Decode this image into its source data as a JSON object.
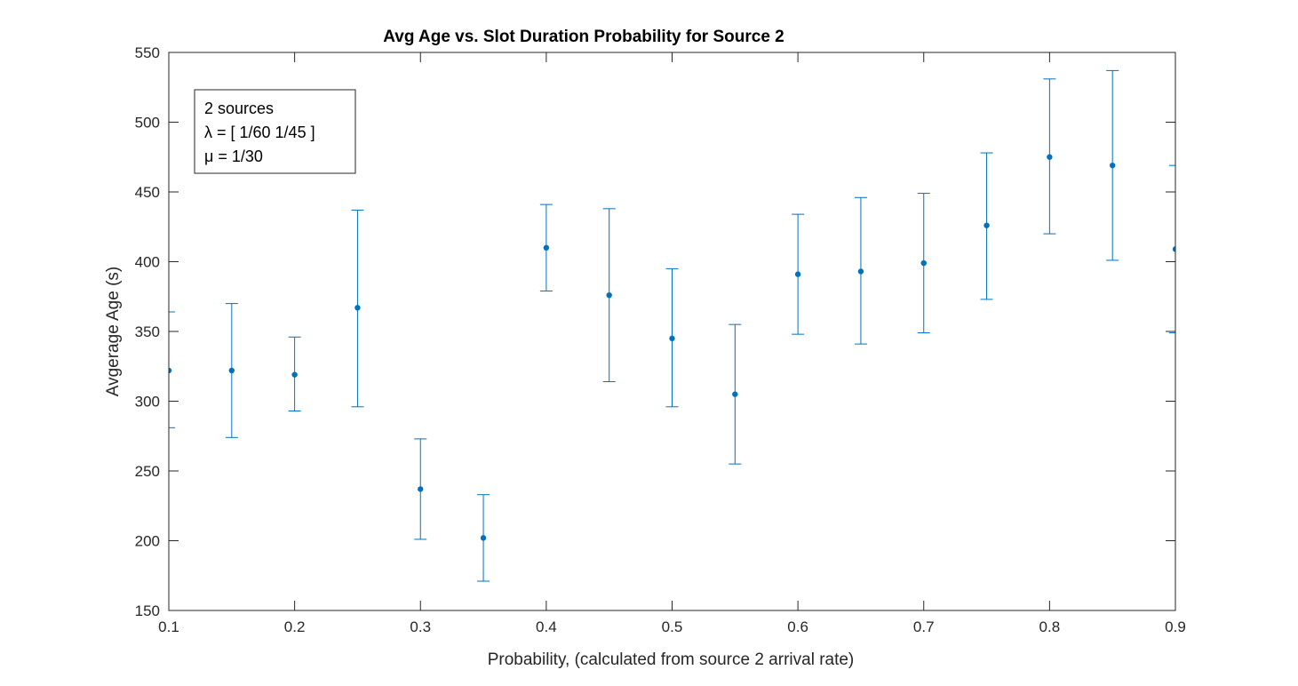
{
  "chart_data": {
    "type": "scatter",
    "title": "Avg Age vs. Slot Duration Probability for Source 2",
    "xlabel": "Probability, (calculated from source 2 arrival rate)",
    "ylabel": "Avgerage Age (s)",
    "xlim": [
      0.1,
      0.9
    ],
    "ylim": [
      150,
      550
    ],
    "xticks": [
      0.1,
      0.2,
      0.3,
      0.4,
      0.5,
      0.6,
      0.7,
      0.8,
      0.9
    ],
    "xtick_labels": [
      "0.1",
      "0.2",
      "0.3",
      "0.4",
      "0.5",
      "0.6",
      "0.7",
      "0.8",
      "0.9"
    ],
    "yticks": [
      150,
      200,
      250,
      300,
      350,
      400,
      450,
      500,
      550
    ],
    "ytick_labels": [
      "150",
      "200",
      "250",
      "300",
      "350",
      "400",
      "450",
      "500",
      "550"
    ],
    "grid": false,
    "color": "#0072bd",
    "error_bars": true,
    "points": [
      {
        "x": 0.1,
        "y": 322,
        "low": 281,
        "high": 364
      },
      {
        "x": 0.15,
        "y": 322,
        "low": 274,
        "high": 370
      },
      {
        "x": 0.2,
        "y": 319,
        "low": 293,
        "high": 346
      },
      {
        "x": 0.25,
        "y": 367,
        "low": 296,
        "high": 437
      },
      {
        "x": 0.3,
        "y": 237,
        "low": 201,
        "high": 273
      },
      {
        "x": 0.35,
        "y": 202,
        "low": 171,
        "high": 233
      },
      {
        "x": 0.4,
        "y": 410,
        "low": 379,
        "high": 441
      },
      {
        "x": 0.45,
        "y": 376,
        "low": 314,
        "high": 438
      },
      {
        "x": 0.5,
        "y": 345,
        "low": 296,
        "high": 395
      },
      {
        "x": 0.55,
        "y": 305,
        "low": 255,
        "high": 355
      },
      {
        "x": 0.6,
        "y": 391,
        "low": 348,
        "high": 434
      },
      {
        "x": 0.65,
        "y": 393,
        "low": 341,
        "high": 446
      },
      {
        "x": 0.7,
        "y": 399,
        "low": 349,
        "high": 449
      },
      {
        "x": 0.75,
        "y": 426,
        "low": 373,
        "high": 478
      },
      {
        "x": 0.8,
        "y": 475,
        "low": 420,
        "high": 531
      },
      {
        "x": 0.85,
        "y": 469,
        "low": 401,
        "high": 537
      },
      {
        "x": 0.9,
        "y": 409,
        "low": 349,
        "high": 469
      }
    ],
    "legend": {
      "placement": "top-left",
      "lines": [
        "2 sources",
        "λ = [ 1/60 1/45 ]",
        "μ = 1/30"
      ]
    }
  }
}
